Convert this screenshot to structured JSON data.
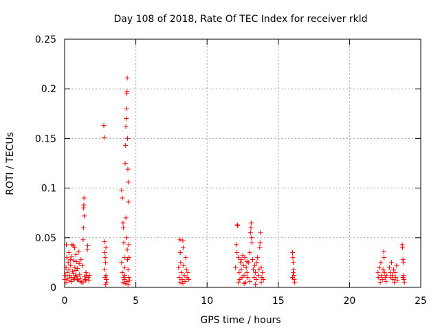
{
  "chart_data": {
    "type": "scatter",
    "title": "Day 108 of 2018, Rate Of TEC Index for receiver rkld",
    "xlabel": "GPS time / hours",
    "ylabel": "ROTI / TECUs",
    "xlim": [
      0,
      25
    ],
    "ylim": [
      0,
      0.25
    ],
    "xticks": [
      0,
      5,
      10,
      15,
      20,
      25
    ],
    "yticks": [
      0,
      0.05,
      0.1,
      0.15,
      0.2,
      0.25
    ],
    "ytick_labels": [
      "0",
      "0.05",
      "0.1",
      "0.15",
      "0.2",
      "0.25"
    ],
    "xtick_labels": [
      "0",
      "5",
      "10",
      "15",
      "20",
      "25"
    ],
    "grid": true,
    "marker": "+",
    "color": "#ff0000",
    "series": [
      {
        "name": "ROTI",
        "points": [
          [
            0.0,
            0.008
          ],
          [
            0.05,
            0.012
          ],
          [
            0.1,
            0.02
          ],
          [
            0.12,
            0.043
          ],
          [
            0.15,
            0.03
          ],
          [
            0.18,
            0.015
          ],
          [
            0.2,
            0.009
          ],
          [
            0.25,
            0.025
          ],
          [
            0.3,
            0.018
          ],
          [
            0.3,
            0.035
          ],
          [
            0.35,
            0.012
          ],
          [
            0.4,
            0.028
          ],
          [
            0.42,
            0.022
          ],
          [
            0.45,
            0.01
          ],
          [
            0.5,
            0.031
          ],
          [
            0.52,
            0.043
          ],
          [
            0.55,
            0.016
          ],
          [
            0.6,
            0.042
          ],
          [
            0.62,
            0.027
          ],
          [
            0.65,
            0.008
          ],
          [
            0.7,
            0.04
          ],
          [
            0.72,
            0.02
          ],
          [
            0.75,
            0.012
          ],
          [
            0.8,
            0.033
          ],
          [
            0.82,
            0.026
          ],
          [
            0.85,
            0.011
          ],
          [
            0.9,
            0.019
          ],
          [
            0.95,
            0.007
          ],
          [
            1.0,
            0.036
          ],
          [
            1.02,
            0.024
          ],
          [
            1.05,
            0.013
          ],
          [
            1.1,
            0.009
          ],
          [
            1.15,
            0.028
          ],
          [
            1.2,
            0.005
          ],
          [
            1.25,
            0.022
          ],
          [
            1.3,
            0.048
          ],
          [
            1.32,
            0.06
          ],
          [
            1.33,
            0.08
          ],
          [
            1.35,
            0.083
          ],
          [
            1.36,
            0.09
          ],
          [
            1.38,
            0.072
          ],
          [
            1.4,
            0.011
          ],
          [
            1.45,
            0.008
          ],
          [
            1.5,
            0.015
          ],
          [
            1.55,
            0.012
          ],
          [
            1.6,
            0.038
          ],
          [
            1.62,
            0.042
          ],
          [
            1.65,
            0.01
          ],
          [
            1.7,
            0.007
          ],
          [
            1.75,
            0.012
          ],
          [
            0.1,
            0.005
          ],
          [
            0.3,
            0.007
          ],
          [
            0.5,
            0.006
          ],
          [
            0.7,
            0.009
          ],
          [
            0.9,
            0.008
          ],
          [
            1.1,
            0.006
          ],
          [
            1.3,
            0.005
          ],
          [
            1.5,
            0.007
          ],
          [
            0.6,
            0.014
          ],
          [
            0.8,
            0.017
          ],
          [
            2.75,
            0.163
          ],
          [
            2.78,
            0.151
          ],
          [
            2.8,
            0.046
          ],
          [
            2.82,
            0.035
          ],
          [
            2.85,
            0.03
          ],
          [
            2.88,
            0.025
          ],
          [
            2.9,
            0.012
          ],
          [
            2.92,
            0.008
          ],
          [
            2.95,
            0.005
          ],
          [
            2.8,
            0.018
          ],
          [
            2.85,
            0.01
          ],
          [
            2.9,
            0.04
          ],
          [
            2.88,
            0.003
          ],
          [
            4.0,
            0.098
          ],
          [
            4.05,
            0.09
          ],
          [
            4.1,
            0.065
          ],
          [
            4.12,
            0.06
          ],
          [
            4.15,
            0.045
          ],
          [
            4.18,
            0.03
          ],
          [
            4.2,
            0.02
          ],
          [
            4.22,
            0.012
          ],
          [
            4.25,
            0.125
          ],
          [
            4.28,
            0.143
          ],
          [
            4.3,
            0.162
          ],
          [
            4.32,
            0.17
          ],
          [
            4.34,
            0.18
          ],
          [
            4.36,
            0.195
          ],
          [
            4.38,
            0.197
          ],
          [
            4.4,
            0.211
          ],
          [
            4.42,
            0.15
          ],
          [
            4.44,
            0.119
          ],
          [
            4.46,
            0.106
          ],
          [
            4.48,
            0.086
          ],
          [
            4.3,
            0.07
          ],
          [
            4.35,
            0.05
          ],
          [
            4.4,
            0.038
          ],
          [
            4.42,
            0.028
          ],
          [
            4.45,
            0.018
          ],
          [
            4.5,
            0.01
          ],
          [
            4.55,
            0.007
          ],
          [
            4.1,
            0.005
          ],
          [
            4.2,
            0.008
          ],
          [
            4.0,
            0.025
          ],
          [
            4.05,
            0.015
          ],
          [
            4.15,
            0.01
          ],
          [
            4.25,
            0.004
          ],
          [
            4.35,
            0.006
          ],
          [
            4.45,
            0.003
          ],
          [
            4.5,
            0.043
          ],
          [
            4.52,
            0.03
          ],
          [
            8.0,
            0.02
          ],
          [
            8.05,
            0.01
          ],
          [
            8.1,
            0.048
          ],
          [
            8.12,
            0.035
          ],
          [
            8.15,
            0.025
          ],
          [
            8.2,
            0.015
          ],
          [
            8.25,
            0.008
          ],
          [
            8.3,
            0.047
          ],
          [
            8.32,
            0.04
          ],
          [
            8.35,
            0.022
          ],
          [
            8.4,
            0.012
          ],
          [
            8.45,
            0.006
          ],
          [
            8.5,
            0.03
          ],
          [
            8.55,
            0.018
          ],
          [
            8.6,
            0.01
          ],
          [
            8.65,
            0.015
          ],
          [
            8.7,
            0.008
          ],
          [
            8.1,
            0.005
          ],
          [
            8.3,
            0.004
          ],
          [
            12.0,
            0.02
          ],
          [
            12.05,
            0.043
          ],
          [
            12.1,
            0.035
          ],
          [
            12.12,
            0.063
          ],
          [
            12.15,
            0.062
          ],
          [
            12.2,
            0.03
          ],
          [
            12.25,
            0.015
          ],
          [
            12.3,
            0.008
          ],
          [
            12.35,
            0.025
          ],
          [
            12.4,
            0.018
          ],
          [
            12.45,
            0.01
          ],
          [
            12.5,
            0.032
          ],
          [
            12.55,
            0.022
          ],
          [
            12.6,
            0.012
          ],
          [
            12.65,
            0.03
          ],
          [
            12.7,
            0.005
          ],
          [
            12.75,
            0.02
          ],
          [
            12.8,
            0.015
          ],
          [
            12.85,
            0.01
          ],
          [
            12.9,
            0.025
          ],
          [
            13.0,
            0.035
          ],
          [
            13.05,
            0.055
          ],
          [
            13.08,
            0.06
          ],
          [
            13.1,
            0.065
          ],
          [
            13.12,
            0.05
          ],
          [
            13.15,
            0.045
          ],
          [
            13.2,
            0.028
          ],
          [
            13.25,
            0.018
          ],
          [
            13.3,
            0.01
          ],
          [
            13.35,
            0.022
          ],
          [
            13.4,
            0.015
          ],
          [
            13.45,
            0.008
          ],
          [
            13.5,
            0.025
          ],
          [
            13.55,
            0.03
          ],
          [
            13.6,
            0.012
          ],
          [
            13.65,
            0.018
          ],
          [
            13.7,
            0.04
          ],
          [
            13.72,
            0.045
          ],
          [
            13.75,
            0.055
          ],
          [
            13.8,
            0.02
          ],
          [
            13.85,
            0.01
          ],
          [
            13.9,
            0.015
          ],
          [
            13.95,
            0.008
          ],
          [
            12.2,
            0.005
          ],
          [
            12.6,
            0.004
          ],
          [
            13.0,
            0.006
          ],
          [
            13.4,
            0.003
          ],
          [
            13.8,
            0.005
          ],
          [
            12.4,
            0.028
          ],
          [
            12.8,
            0.026
          ],
          [
            16.0,
            0.035
          ],
          [
            16.02,
            0.03
          ],
          [
            16.05,
            0.025
          ],
          [
            16.08,
            0.018
          ],
          [
            16.1,
            0.012
          ],
          [
            16.12,
            0.008
          ],
          [
            16.15,
            0.005
          ],
          [
            16.0,
            0.01
          ],
          [
            16.05,
            0.015
          ],
          [
            22.0,
            0.015
          ],
          [
            22.05,
            0.01
          ],
          [
            22.1,
            0.02
          ],
          [
            22.15,
            0.005
          ],
          [
            22.2,
            0.025
          ],
          [
            22.25,
            0.012
          ],
          [
            22.3,
            0.008
          ],
          [
            22.35,
            0.018
          ],
          [
            22.4,
            0.036
          ],
          [
            22.42,
            0.03
          ],
          [
            22.45,
            0.015
          ],
          [
            22.5,
            0.01
          ],
          [
            22.55,
            0.006
          ],
          [
            22.6,
            0.012
          ],
          [
            22.8,
            0.02
          ],
          [
            22.85,
            0.015
          ],
          [
            22.9,
            0.01
          ],
          [
            22.95,
            0.025
          ],
          [
            23.0,
            0.012
          ],
          [
            23.05,
            0.008
          ],
          [
            23.1,
            0.018
          ],
          [
            23.15,
            0.005
          ],
          [
            23.2,
            0.015
          ],
          [
            23.25,
            0.01
          ],
          [
            23.3,
            0.022
          ],
          [
            23.35,
            0.007
          ],
          [
            23.7,
            0.043
          ],
          [
            23.72,
            0.04
          ],
          [
            23.75,
            0.028
          ],
          [
            23.78,
            0.025
          ],
          [
            23.8,
            0.012
          ],
          [
            23.82,
            0.008
          ],
          [
            23.85,
            0.005
          ],
          [
            23.75,
            0.01
          ]
        ]
      }
    ]
  }
}
